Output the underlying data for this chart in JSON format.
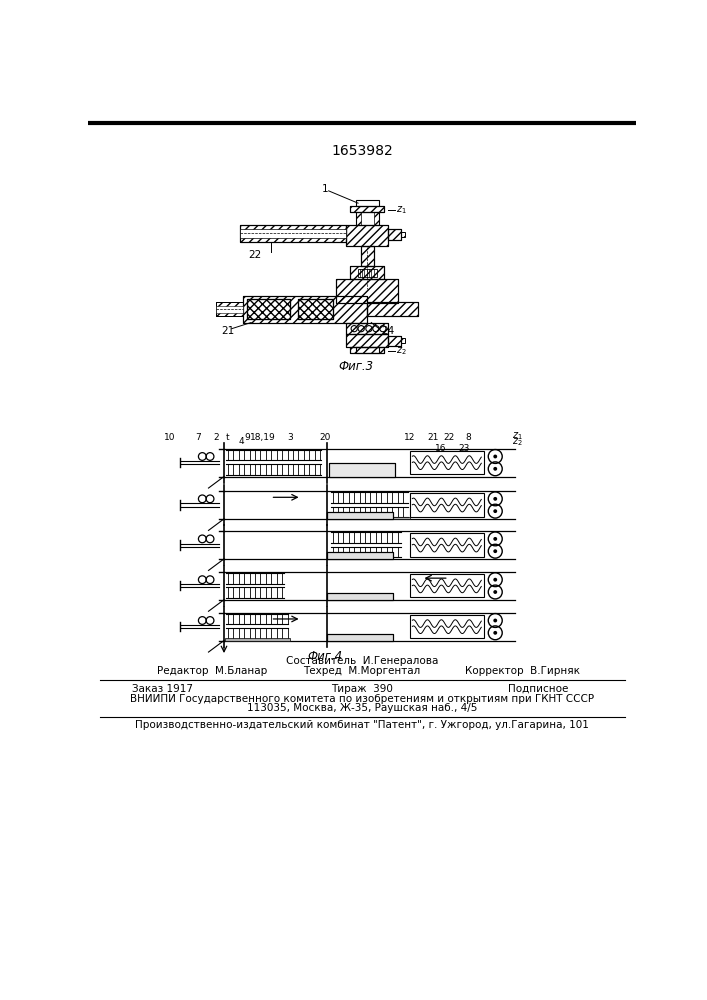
{
  "patent_number": "1653982",
  "fig3_label": "Фиг.3",
  "fig4_label": "Фиг.4",
  "editor_line": "Редактор  М.Бланар",
  "compiler_line": "Составитель  И.Генералова",
  "techred_line": "Техред  М.Моргентал",
  "corrector_line": "Корректор  В.Гирняк",
  "order_line": "Заказ 1917",
  "tirazh_line": "Тираж  390",
  "podpisnoe_line": "Подписное",
  "vnipi_line1": "ВНИИПИ Государственного комитета по изобретениям и открытиям при ГКНТ СССР",
  "vnipi_line2": "113035, Москва, Ж-35, Раушская наб., 4/5",
  "proizv_line": "Производственно-издательский комбинат \"Патент\", г. Ужгород, ул.Гагарина, 101",
  "bg_color": "#ffffff",
  "line_color": "#000000"
}
